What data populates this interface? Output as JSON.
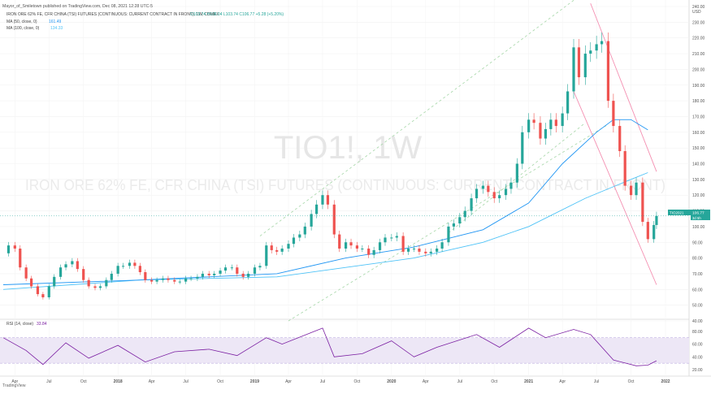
{
  "header": {
    "published": "Mayor_of_Smiletown published on TradingView.com, Dec 08, 2021 12:28 UTC-5",
    "symbol_line": "IRON ORE 62% FE, CFR CHINA (TSI) FUTURES (CONTINUOUS: CURRENT CONTRACT IN FRONT), 1W, COMEX",
    "ohlc": "O103.74 H108.04 L103.74 C106.77 +5.28 (+5.20%)",
    "ma50_label": "MA (50, close, 0)",
    "ma50_value": "161.49",
    "ma100_label": "MA (100, close, 0)",
    "ma100_value": "134.33"
  },
  "watermark": {
    "ticker": "TIO1!, 1W",
    "name": "IRON ORE 62% FE, CFR CHINA (TSI) FUTURES (CONTINUOUS: CURRENT CONTRACT IN FRONT)"
  },
  "price_axis": {
    "unit": "USD",
    "ticks": [
      "240.00",
      "230.00",
      "220.00",
      "210.00",
      "200.00",
      "190.00",
      "180.00",
      "170.00",
      "160.00",
      "150.00",
      "140.00",
      "130.00",
      "120.00",
      "110.00",
      "100.00",
      "90.00",
      "80.00",
      "70.00",
      "60.00",
      "50.00",
      "40.00"
    ],
    "last_label": "TIO2021",
    "last_value": "106.77",
    "countdown": "3d 5h"
  },
  "rsi": {
    "label": "RSI (14, close)",
    "value": "33.84",
    "ticks": [
      "80.00",
      "60.00",
      "40.00",
      "20.00"
    ]
  },
  "time_axis": {
    "labels": [
      "Apr",
      "Jul",
      "Oct",
      "2018",
      "Apr",
      "Jul",
      "Oct",
      "2019",
      "Apr",
      "Jul",
      "Oct",
      "2020",
      "Apr",
      "Jul",
      "Oct",
      "2021",
      "Apr",
      "Jul",
      "Oct",
      "2022"
    ]
  },
  "footer": {
    "brand": "TradingView"
  },
  "colors": {
    "up": "#26a69a",
    "down": "#ef5350",
    "ma50": "#2196f3",
    "ma100": "#4fc3f7",
    "channel": "#a5d6a7",
    "downtrend": "#f48fb1",
    "rsi_line": "#7b1fa2",
    "rsi_band": "#ede7f6"
  },
  "chart_data": {
    "type": "candlestick",
    "title": "IRON ORE 62% FE, CFR CHINA (TSI) FUTURES (CONTINUOUS: CURRENT CONTRACT IN FRONT), 1W, COMEX",
    "ylabel": "USD",
    "ylim": [
      40,
      240
    ],
    "x_range": [
      "2017-03",
      "2022-01"
    ],
    "price_path": [
      [
        "2017-03-01",
        83
      ],
      [
        "2017-03-15",
        88
      ],
      [
        "2017-04-01",
        86
      ],
      [
        "2017-04-15",
        74
      ],
      [
        "2017-05-01",
        67
      ],
      [
        "2017-05-15",
        62
      ],
      [
        "2017-06-01",
        57
      ],
      [
        "2017-06-15",
        55
      ],
      [
        "2017-07-01",
        62
      ],
      [
        "2017-07-15",
        68
      ],
      [
        "2017-08-01",
        74
      ],
      [
        "2017-08-15",
        76
      ],
      [
        "2017-09-01",
        78
      ],
      [
        "2017-09-15",
        73
      ],
      [
        "2017-10-01",
        66
      ],
      [
        "2017-10-15",
        62
      ],
      [
        "2017-11-01",
        61
      ],
      [
        "2017-11-15",
        62
      ],
      [
        "2017-12-01",
        66
      ],
      [
        "2017-12-15",
        70
      ],
      [
        "2018-01-01",
        75
      ],
      [
        "2018-01-15",
        75
      ],
      [
        "2018-02-01",
        77
      ],
      [
        "2018-02-15",
        75
      ],
      [
        "2018-03-01",
        71
      ],
      [
        "2018-03-15",
        66
      ],
      [
        "2018-04-01",
        65
      ],
      [
        "2018-04-15",
        66
      ],
      [
        "2018-05-01",
        67
      ],
      [
        "2018-05-15",
        66
      ],
      [
        "2018-06-01",
        65
      ],
      [
        "2018-06-15",
        65
      ],
      [
        "2018-07-01",
        67
      ],
      [
        "2018-07-15",
        67
      ],
      [
        "2018-08-01",
        68
      ],
      [
        "2018-08-15",
        70
      ],
      [
        "2018-09-01",
        69
      ],
      [
        "2018-09-15",
        70
      ],
      [
        "2018-10-01",
        72
      ],
      [
        "2018-10-15",
        74
      ],
      [
        "2018-11-01",
        74
      ],
      [
        "2018-11-15",
        70
      ],
      [
        "2018-12-01",
        68
      ],
      [
        "2018-12-15",
        70
      ],
      [
        "2019-01-01",
        74
      ],
      [
        "2019-01-15",
        75
      ],
      [
        "2019-02-01",
        88
      ],
      [
        "2019-02-15",
        85
      ],
      [
        "2019-03-01",
        84
      ],
      [
        "2019-03-15",
        86
      ],
      [
        "2019-04-01",
        89
      ],
      [
        "2019-04-15",
        93
      ],
      [
        "2019-05-01",
        95
      ],
      [
        "2019-05-15",
        100
      ],
      [
        "2019-06-01",
        108
      ],
      [
        "2019-06-15",
        114
      ],
      [
        "2019-07-01",
        120
      ],
      [
        "2019-07-15",
        114
      ],
      [
        "2019-08-01",
        95
      ],
      [
        "2019-08-15",
        86
      ],
      [
        "2019-09-01",
        90
      ],
      [
        "2019-09-15",
        88
      ],
      [
        "2019-10-01",
        86
      ],
      [
        "2019-10-15",
        86
      ],
      [
        "2019-11-01",
        82
      ],
      [
        "2019-11-15",
        85
      ],
      [
        "2019-12-01",
        90
      ],
      [
        "2019-12-15",
        93
      ],
      [
        "2020-01-01",
        93
      ],
      [
        "2020-01-15",
        94
      ],
      [
        "2020-02-01",
        84
      ],
      [
        "2020-02-15",
        86
      ],
      [
        "2020-03-01",
        86
      ],
      [
        "2020-03-15",
        84
      ],
      [
        "2020-04-01",
        83
      ],
      [
        "2020-04-15",
        84
      ],
      [
        "2020-05-01",
        86
      ],
      [
        "2020-05-15",
        90
      ],
      [
        "2020-06-01",
        100
      ],
      [
        "2020-06-15",
        102
      ],
      [
        "2020-07-01",
        106
      ],
      [
        "2020-07-15",
        110
      ],
      [
        "2020-08-01",
        118
      ],
      [
        "2020-08-15",
        124
      ],
      [
        "2020-09-01",
        126
      ],
      [
        "2020-09-15",
        122
      ],
      [
        "2020-10-01",
        118
      ],
      [
        "2020-10-15",
        120
      ],
      [
        "2020-11-01",
        124
      ],
      [
        "2020-11-15",
        128
      ],
      [
        "2020-12-01",
        140
      ],
      [
        "2020-12-15",
        160
      ],
      [
        "2021-01-01",
        168
      ],
      [
        "2021-01-15",
        166
      ],
      [
        "2021-02-01",
        156
      ],
      [
        "2021-02-15",
        162
      ],
      [
        "2021-03-01",
        168
      ],
      [
        "2021-03-15",
        164
      ],
      [
        "2021-04-01",
        172
      ],
      [
        "2021-04-15",
        186
      ],
      [
        "2021-05-01",
        214
      ],
      [
        "2021-05-15",
        195
      ],
      [
        "2021-06-01",
        210
      ],
      [
        "2021-06-15",
        212
      ],
      [
        "2021-07-01",
        216
      ],
      [
        "2021-07-15",
        218
      ],
      [
        "2021-08-01",
        180
      ],
      [
        "2021-08-15",
        164
      ],
      [
        "2021-09-01",
        148
      ],
      [
        "2021-09-15",
        126
      ],
      [
        "2021-10-01",
        120
      ],
      [
        "2021-10-15",
        128
      ],
      [
        "2021-11-01",
        103
      ],
      [
        "2021-11-15",
        92
      ],
      [
        "2021-12-01",
        101
      ],
      [
        "2021-12-08",
        106.77
      ]
    ],
    "ma50_path": [
      [
        "2017-03-01",
        63
      ],
      [
        "2018-03-01",
        66
      ],
      [
        "2019-03-01",
        70
      ],
      [
        "2019-09-01",
        80
      ],
      [
        "2020-03-01",
        87
      ],
      [
        "2020-09-01",
        98
      ],
      [
        "2021-01-01",
        115
      ],
      [
        "2021-04-01",
        140
      ],
      [
        "2021-07-01",
        160
      ],
      [
        "2021-08-15",
        168
      ],
      [
        "2021-10-01",
        168
      ],
      [
        "2021-11-15",
        161.49
      ]
    ],
    "ma100_path": [
      [
        "2017-03-01",
        60
      ],
      [
        "2018-03-01",
        66
      ],
      [
        "2019-03-01",
        68
      ],
      [
        "2019-09-01",
        74
      ],
      [
        "2020-03-01",
        80
      ],
      [
        "2020-09-01",
        90
      ],
      [
        "2021-01-01",
        100
      ],
      [
        "2021-06-01",
        118
      ],
      [
        "2021-10-01",
        130
      ],
      [
        "2021-11-15",
        134.33
      ]
    ],
    "channel_lines": [
      [
        [
          "2019-01-15",
          94
        ],
        [
          "2021-06-15",
          252
        ]
      ],
      [
        [
          "2019-04-01",
          40
        ],
        [
          "2021-08-01",
          165
        ]
      ],
      [
        [
          "2020-06-01",
          96
        ],
        [
          "2021-06-01",
          166
        ]
      ]
    ],
    "downtrend_lines": [
      [
        [
          "2021-06-15",
          242
        ],
        [
          "2021-12-08",
          135
        ]
      ],
      [
        [
          "2021-05-01",
          186
        ],
        [
          "2021-12-08",
          63
        ]
      ]
    ],
    "last_price": 106.77,
    "rsi": {
      "ylim": [
        20,
        90
      ],
      "band": [
        30,
        70
      ],
      "path": [
        [
          "2017-03-01",
          70
        ],
        [
          "2017-05-01",
          50
        ],
        [
          "2017-06-15",
          28
        ],
        [
          "2017-08-15",
          62
        ],
        [
          "2017-10-15",
          38
        ],
        [
          "2018-01-01",
          58
        ],
        [
          "2018-03-15",
          32
        ],
        [
          "2018-06-01",
          48
        ],
        [
          "2018-09-01",
          52
        ],
        [
          "2018-11-15",
          42
        ],
        [
          "2019-02-01",
          70
        ],
        [
          "2019-03-15",
          60
        ],
        [
          "2019-07-01",
          85
        ],
        [
          "2019-08-01",
          40
        ],
        [
          "2019-10-15",
          45
        ],
        [
          "2020-01-01",
          65
        ],
        [
          "2020-03-01",
          40
        ],
        [
          "2020-05-01",
          55
        ],
        [
          "2020-08-15",
          75
        ],
        [
          "2020-10-15",
          55
        ],
        [
          "2021-01-01",
          85
        ],
        [
          "2021-02-15",
          70
        ],
        [
          "2021-05-01",
          83
        ],
        [
          "2021-06-15",
          75
        ],
        [
          "2021-08-15",
          35
        ],
        [
          "2021-10-15",
          26
        ],
        [
          "2021-11-15",
          27
        ],
        [
          "2021-12-08",
          33.84
        ]
      ]
    }
  }
}
